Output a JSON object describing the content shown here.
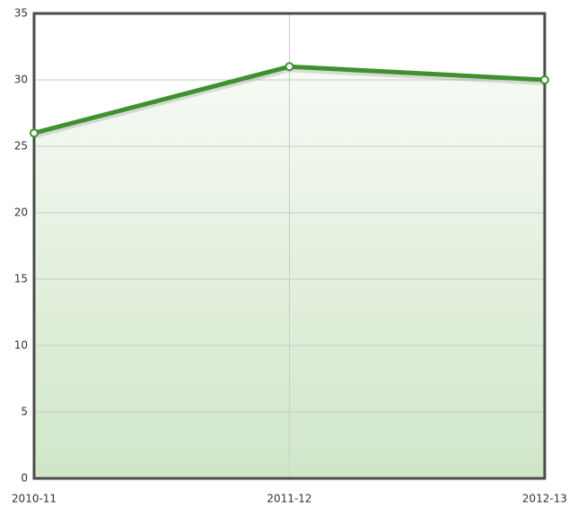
{
  "chart_data": {
    "type": "line",
    "categories": [
      "2010-11",
      "2011-12",
      "2012-13"
    ],
    "values": [
      26,
      31,
      30
    ],
    "color": "#3f9130",
    "area": true,
    "ylim": [
      0,
      35
    ],
    "yticks": [
      0,
      5,
      10,
      15,
      20,
      25,
      30,
      35
    ],
    "grid": true
  }
}
